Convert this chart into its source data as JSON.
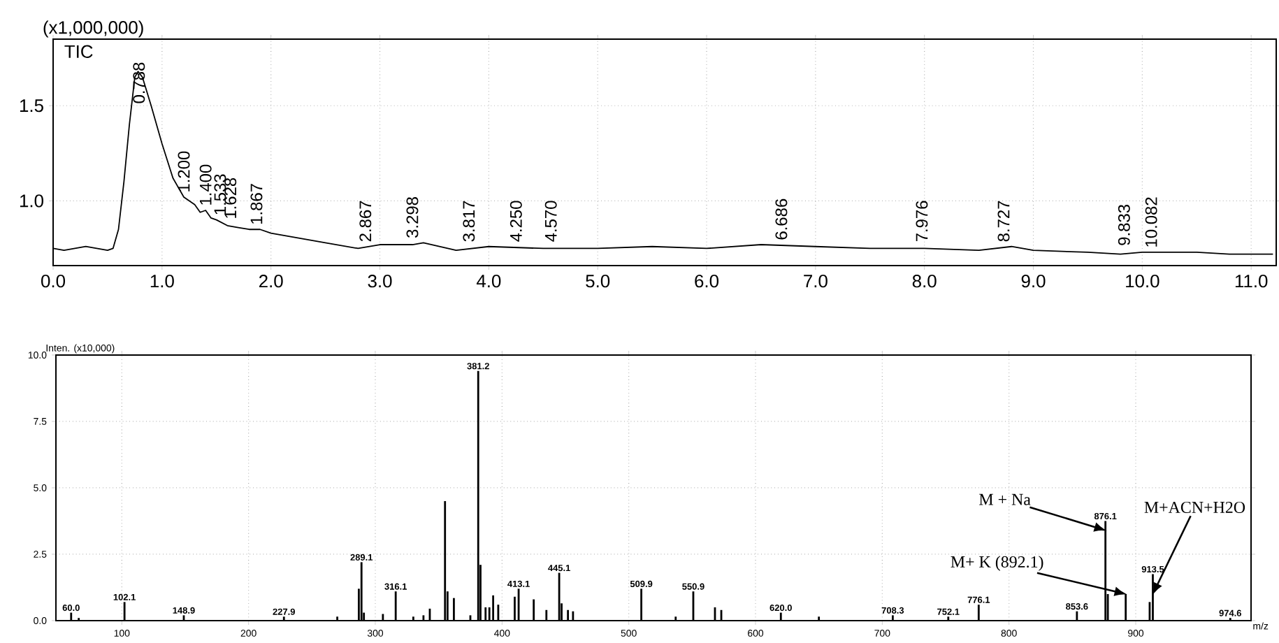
{
  "chart_data": [
    {
      "type": "line",
      "ylabel": "(x1,000,000)",
      "xlim": [
        0,
        11.23
      ],
      "ylim": [
        0.66,
        1.85
      ],
      "grid": true,
      "xticks": [
        {
          "value": 0,
          "label": "0.0"
        },
        {
          "value": 1,
          "label": "1.0"
        },
        {
          "value": 2,
          "label": "2.0"
        },
        {
          "value": 3,
          "label": "3.0"
        },
        {
          "value": 4,
          "label": "4.0"
        },
        {
          "value": 5,
          "label": "5.0"
        },
        {
          "value": 6,
          "label": "6.0"
        },
        {
          "value": 7,
          "label": "7.0"
        },
        {
          "value": 8,
          "label": "8.0"
        },
        {
          "value": 9,
          "label": "9.0"
        },
        {
          "value": 10,
          "label": "10.0"
        },
        {
          "value": 11,
          "label": "11.0"
        }
      ],
      "yticks": [
        {
          "value": 1,
          "label": "1.0"
        },
        1.5
      ],
      "x": [
        0,
        0.1,
        0.3,
        0.5,
        0.55,
        0.6,
        0.65,
        0.7,
        0.75,
        0.78,
        0.82,
        0.9,
        1.0,
        1.1,
        1.2,
        1.3,
        1.35,
        1.4,
        1.45,
        1.5,
        1.6,
        1.7,
        1.8,
        1.9,
        2.0,
        2.2,
        2.5,
        2.8,
        3.0,
        3.3,
        3.4,
        3.7,
        4.0,
        4.5,
        5.0,
        5.5,
        6.0,
        6.5,
        7.0,
        7.5,
        8.0,
        8.5,
        8.8,
        9.0,
        9.5,
        9.8,
        10.0,
        10.5,
        10.8,
        11.0,
        11.2
      ],
      "series": [
        {
          "name": "TIC",
          "color": "#000000",
          "values": [
            0.75,
            0.74,
            0.76,
            0.74,
            0.75,
            0.85,
            1.1,
            1.4,
            1.65,
            1.68,
            1.65,
            1.5,
            1.3,
            1.12,
            1.02,
            0.98,
            0.94,
            0.95,
            0.91,
            0.9,
            0.87,
            0.86,
            0.85,
            0.85,
            0.83,
            0.81,
            0.78,
            0.75,
            0.77,
            0.77,
            0.78,
            0.74,
            0.76,
            0.75,
            0.75,
            0.76,
            0.75,
            0.77,
            0.76,
            0.75,
            0.75,
            0.74,
            0.76,
            0.74,
            0.73,
            0.72,
            0.73,
            0.73,
            0.72,
            0.72,
            0.72
          ]
        }
      ],
      "annotations": [
        {
          "text": "0.788",
          "x": 0.788,
          "y": 1.68
        },
        {
          "text": "1.200",
          "x": 1.2,
          "y": 1.02
        },
        {
          "text": "1.400",
          "x": 1.4,
          "y": 0.95
        },
        {
          "text": "1.533",
          "x": 1.533,
          "y": 0.9
        },
        {
          "text": "1.628",
          "x": 1.628,
          "y": 0.88
        },
        {
          "text": "1.867",
          "x": 1.867,
          "y": 0.85
        },
        {
          "text": "2.867",
          "x": 2.867,
          "y": 0.76
        },
        {
          "text": "3.298",
          "x": 3.298,
          "y": 0.78
        },
        {
          "text": "3.817",
          "x": 3.817,
          "y": 0.76
        },
        {
          "text": "4.250",
          "x": 4.25,
          "y": 0.76
        },
        {
          "text": "4.570",
          "x": 4.57,
          "y": 0.76
        },
        {
          "text": "6.686",
          "x": 6.686,
          "y": 0.77
        },
        {
          "text": "7.976",
          "x": 7.976,
          "y": 0.76
        },
        {
          "text": "8.727",
          "x": 8.727,
          "y": 0.76
        },
        {
          "text": "9.833",
          "x": 9.833,
          "y": 0.74
        },
        {
          "text": "10.082",
          "x": 10.082,
          "y": 0.73
        }
      ]
    },
    {
      "type": "bar",
      "ylabel": "Inten.   (x10,000)",
      "xlabel": "m/z",
      "xlim": [
        48,
        991
      ],
      "ylim": [
        0,
        10
      ],
      "grid": true,
      "color": "#000000",
      "xticks": [
        100,
        200,
        300,
        400,
        500,
        600,
        700,
        800,
        900
      ],
      "yticks": [
        {
          "value": 0,
          "label": "0.0"
        },
        2.5,
        {
          "value": 5,
          "label": "5.0"
        },
        {
          "value": 7.5,
          "label": "7.5"
        },
        {
          "value": 10,
          "label": "10.0"
        }
      ],
      "x": [
        60.0,
        66,
        102.1,
        148.9,
        227.9,
        270,
        287,
        289.1,
        291,
        306,
        316.1,
        330,
        338,
        343,
        355,
        357,
        362,
        375,
        381.2,
        383,
        387,
        390,
        393,
        397,
        410,
        413.1,
        425,
        435,
        445.1,
        447,
        452,
        456,
        509.9,
        537,
        550.9,
        568,
        573,
        620.0,
        650,
        708.3,
        752.1,
        776.1,
        853.6,
        876.1,
        878,
        892.1,
        911,
        913.5,
        974.6
      ],
      "values": [
        0.3,
        0.1,
        0.7,
        0.2,
        0.15,
        0.15,
        1.2,
        2.2,
        0.3,
        0.25,
        1.1,
        0.15,
        0.2,
        0.45,
        4.5,
        1.1,
        0.85,
        0.2,
        9.4,
        2.1,
        0.5,
        0.5,
        0.95,
        0.6,
        0.9,
        1.2,
        0.8,
        0.4,
        1.8,
        0.65,
        0.4,
        0.35,
        1.2,
        0.15,
        1.1,
        0.5,
        0.4,
        0.3,
        0.15,
        0.2,
        0.15,
        0.6,
        0.35,
        3.75,
        1.0,
        1.0,
        0.7,
        1.75,
        0.1
      ],
      "annotations": [
        {
          "text": "60.0",
          "x": 60.0,
          "y": 0.3
        },
        {
          "text": "102.1",
          "x": 102.1,
          "y": 0.7
        },
        {
          "text": "148.9",
          "x": 148.9,
          "y": 0.2
        },
        {
          "text": "227.9",
          "x": 227.9,
          "y": 0.15
        },
        {
          "text": "289.1",
          "x": 289.1,
          "y": 2.2
        },
        {
          "text": "316.1",
          "x": 316.1,
          "y": 1.1
        },
        {
          "text": "381.2",
          "x": 381.2,
          "y": 9.4
        },
        {
          "text": "413.1",
          "x": 413.1,
          "y": 1.2
        },
        {
          "text": "445.1",
          "x": 445.1,
          "y": 1.8
        },
        {
          "text": "509.9",
          "x": 509.9,
          "y": 1.2
        },
        {
          "text": "550.9",
          "x": 550.9,
          "y": 1.1
        },
        {
          "text": "620.0",
          "x": 620.0,
          "y": 0.3
        },
        {
          "text": "708.3",
          "x": 708.3,
          "y": 0.2
        },
        {
          "text": "752.1",
          "x": 752.1,
          "y": 0.15
        },
        {
          "text": "776.1",
          "x": 776.1,
          "y": 0.6
        },
        {
          "text": "853.6",
          "x": 853.6,
          "y": 0.35
        },
        {
          "text": "876.1",
          "x": 876.1,
          "y": 3.75
        },
        {
          "text": "913.5",
          "x": 913.5,
          "y": 1.75
        },
        {
          "text": "974.6",
          "x": 974.6,
          "y": 0.1
        },
        {
          "text": "M + Na",
          "x": 876.1,
          "y": 3.4
        },
        {
          "text": "M+ K (892.1)",
          "x": 892.1,
          "y": 1.0
        },
        {
          "text": "M+ACN+H2O",
          "x": 913.5,
          "y": 1.0
        }
      ]
    }
  ]
}
